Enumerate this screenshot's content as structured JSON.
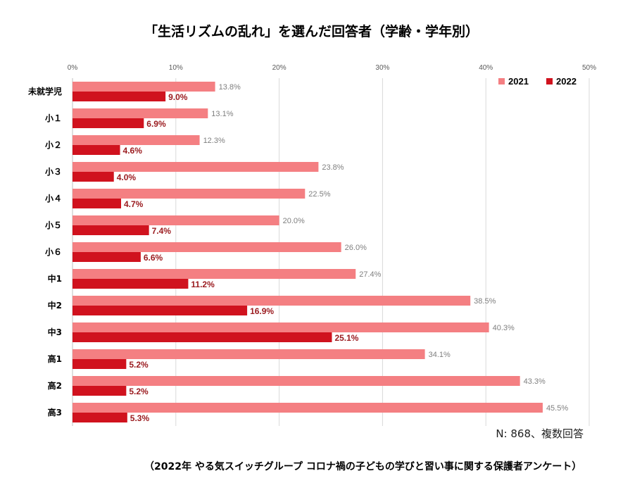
{
  "chart_data": {
    "type": "bar",
    "orientation": "horizontal",
    "title": "「生活リズムの乱れ」を選んだ回答者（学齢・学年別）",
    "categories": [
      "未就学児",
      "小１",
      "小２",
      "小３",
      "小４",
      "小５",
      "小６",
      "中1",
      "中2",
      "中3",
      "高1",
      "高2",
      "高3"
    ],
    "series": [
      {
        "name": "2021",
        "color": "#f47f82",
        "values": [
          13.8,
          13.1,
          12.3,
          23.8,
          22.5,
          20.0,
          26.0,
          27.4,
          38.5,
          40.3,
          34.1,
          43.3,
          45.5
        ]
      },
      {
        "name": "2022",
        "color": "#d0121e",
        "values": [
          9.0,
          6.9,
          4.6,
          4.0,
          4.7,
          7.4,
          6.6,
          11.2,
          16.9,
          25.1,
          5.2,
          5.2,
          5.3
        ]
      }
    ],
    "xlim": [
      0,
      50
    ],
    "xticks": [
      "0%",
      "10%",
      "20%",
      "30%",
      "40%",
      "50%"
    ],
    "grid": true,
    "legend_position": "top-right",
    "note": "N: 868、複数回答",
    "source": "（2022年 やる気スイッチグループ コロナ禍の子どもの学びと習い事に関する保護者アンケート）"
  }
}
